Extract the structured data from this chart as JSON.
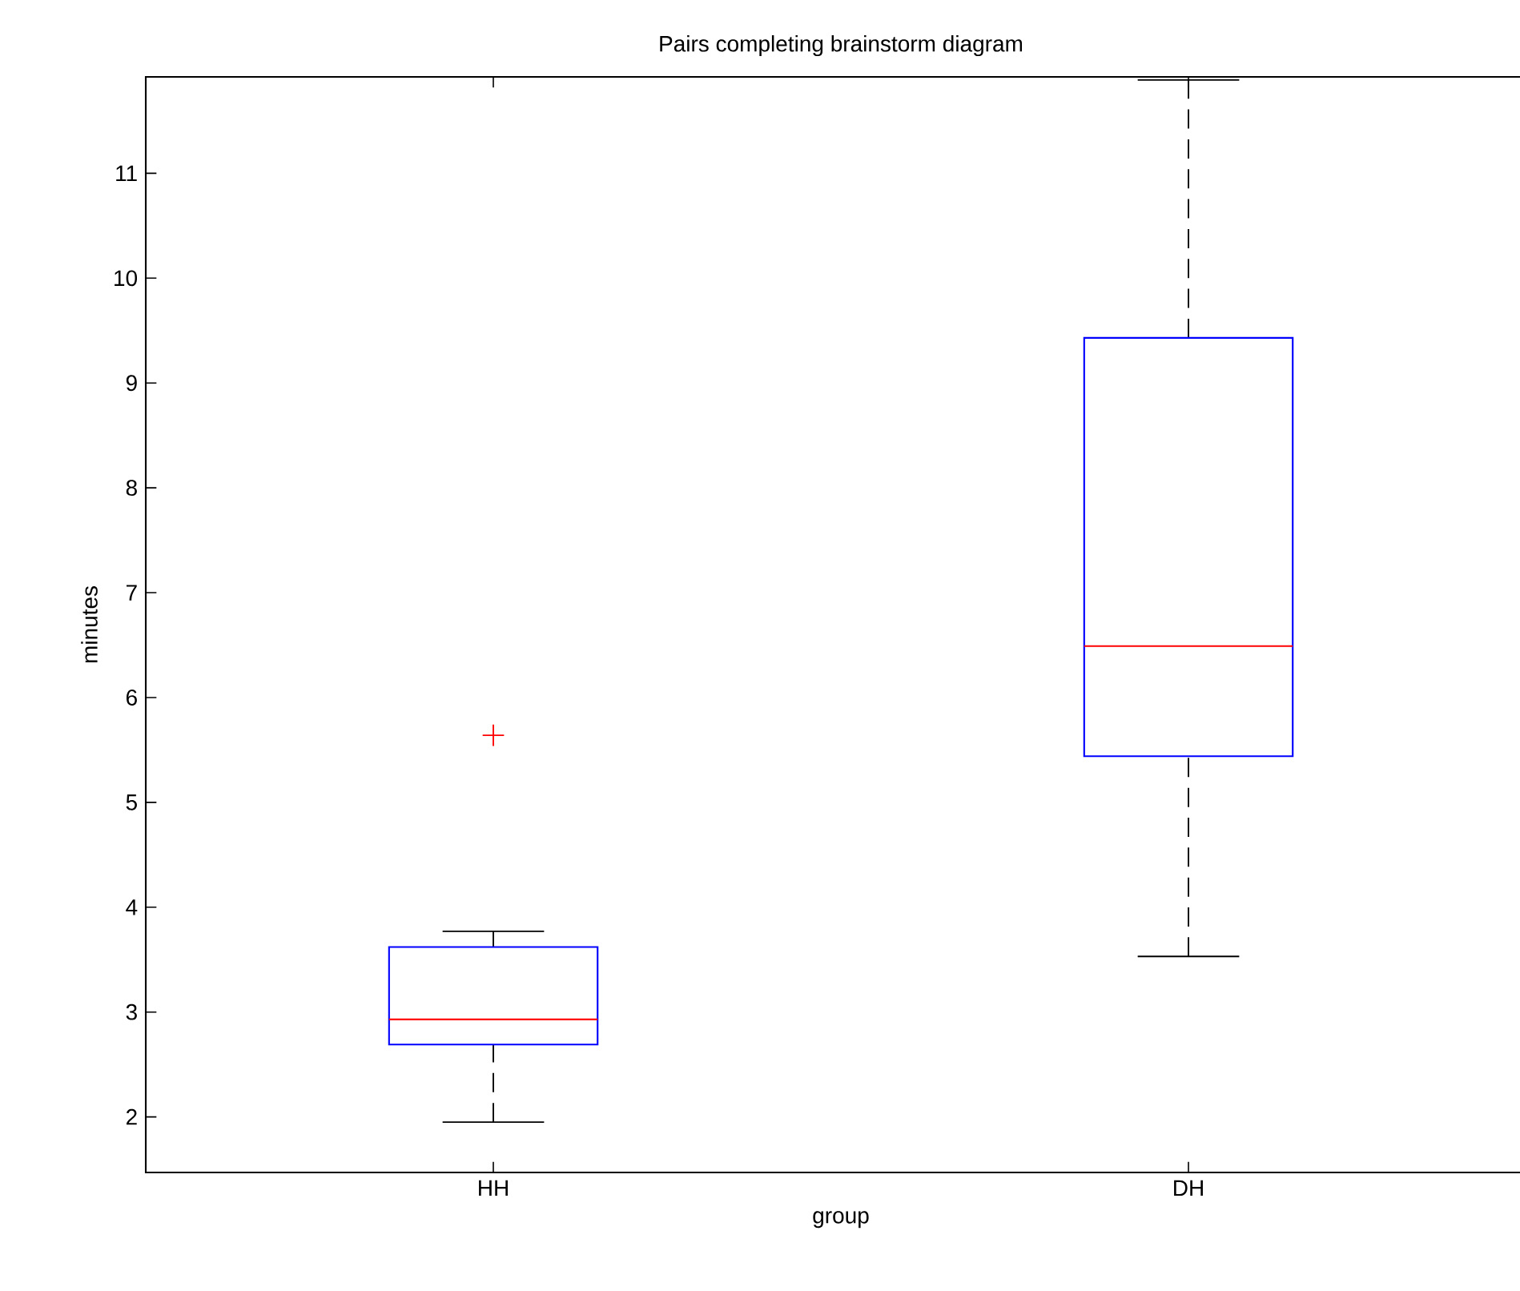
{
  "chart_data": {
    "type": "box",
    "title": "Pairs completing brainstorm diagram",
    "xlabel": "group",
    "ylabel": "minutes",
    "categories": [
      "HH",
      "DH"
    ],
    "boxes": [
      {
        "low": 1.95,
        "q1": 2.69,
        "median": 2.93,
        "q3": 3.62,
        "high": 3.77,
        "outliers": [
          5.64
        ]
      },
      {
        "low": 3.53,
        "q1": 5.44,
        "median": 6.49,
        "q3": 9.43,
        "high": 11.89
      }
    ],
    "color": "#0000ff",
    "marker": "cross",
    "grid": false,
    "ylim": [
      1.47,
      11.92
    ],
    "yticks": [
      2,
      3,
      4,
      5,
      6,
      7,
      8,
      9,
      10,
      11
    ]
  }
}
